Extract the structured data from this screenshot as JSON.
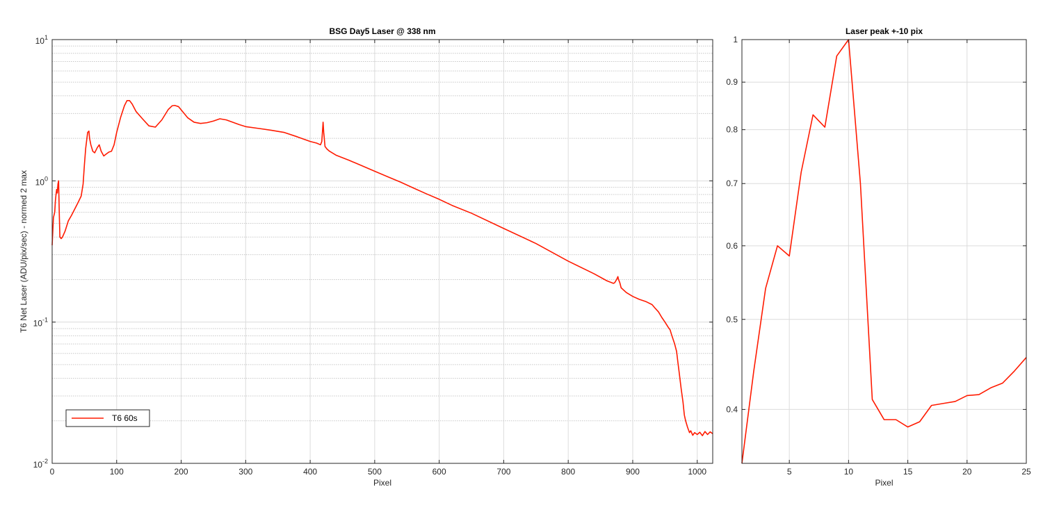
{
  "chart_data": [
    {
      "type": "line",
      "title": "BSG  Day5 Laser @ 338 nm",
      "xlabel": "Pixel",
      "ylabel": "T6 Net Laser (ADU/pix/sec) - normed 2 max",
      "xlim": [
        0,
        1024
      ],
      "ylim": [
        0.01,
        10
      ],
      "yscale": "log",
      "grid": true,
      "minor_grid": true,
      "legend_position": "bottom-left",
      "xticks": [
        0,
        100,
        200,
        300,
        400,
        500,
        600,
        700,
        800,
        900,
        1000
      ],
      "xtick_labels": [
        "0",
        "100",
        "200",
        "300",
        "400",
        "500",
        "600",
        "700",
        "800",
        "900",
        "1000"
      ],
      "yticks": [
        0.01,
        0.1,
        1,
        10
      ],
      "ytick_labels": [
        {
          "base": "10",
          "exp": "-2"
        },
        {
          "base": "10",
          "exp": "-1"
        },
        {
          "base": "10",
          "exp": "0"
        },
        {
          "base": "10",
          "exp": "1"
        }
      ],
      "series": [
        {
          "name": "T6 60s",
          "color": "#ff1a00",
          "x": [
            0,
            2,
            4,
            5,
            6,
            7,
            8,
            9,
            10,
            11,
            12,
            14,
            16,
            20,
            25,
            30,
            40,
            45,
            48,
            50,
            52,
            55,
            57,
            58,
            60,
            63,
            66,
            70,
            73,
            76,
            80,
            84,
            88,
            92,
            96,
            100,
            106,
            112,
            116,
            120,
            124,
            130,
            140,
            150,
            160,
            170,
            180,
            186,
            190,
            196,
            202,
            210,
            220,
            230,
            240,
            250,
            260,
            270,
            280,
            290,
            300,
            320,
            340,
            360,
            380,
            400,
            410,
            416,
            418,
            420,
            421,
            423,
            426,
            430,
            440,
            460,
            480,
            500,
            520,
            540,
            560,
            580,
            600,
            620,
            650,
            700,
            750,
            800,
            840,
            860,
            870,
            872,
            875,
            877,
            878,
            880,
            882,
            890,
            900,
            910,
            920,
            930,
            935,
            940,
            945,
            950,
            955,
            958,
            960,
            965,
            968,
            970,
            972,
            975,
            978,
            980,
            982,
            985,
            988,
            990,
            993,
            996,
            1000,
            1004,
            1008,
            1012,
            1016,
            1020,
            1024
          ],
          "y": [
            0.35,
            0.55,
            0.6,
            0.72,
            0.8,
            0.87,
            0.82,
            0.95,
            1.0,
            0.6,
            0.4,
            0.39,
            0.4,
            0.44,
            0.52,
            0.57,
            0.7,
            0.78,
            0.95,
            1.3,
            1.7,
            2.2,
            2.25,
            2.0,
            1.8,
            1.62,
            1.58,
            1.72,
            1.8,
            1.62,
            1.5,
            1.55,
            1.6,
            1.62,
            1.8,
            2.2,
            2.8,
            3.4,
            3.7,
            3.7,
            3.5,
            3.1,
            2.75,
            2.45,
            2.4,
            2.7,
            3.2,
            3.4,
            3.42,
            3.35,
            3.1,
            2.8,
            2.6,
            2.55,
            2.58,
            2.65,
            2.75,
            2.7,
            2.6,
            2.5,
            2.42,
            2.35,
            2.28,
            2.2,
            2.05,
            1.9,
            1.85,
            1.8,
            1.9,
            2.6,
            2.2,
            1.75,
            1.68,
            1.62,
            1.52,
            1.4,
            1.28,
            1.17,
            1.07,
            0.98,
            0.89,
            0.81,
            0.74,
            0.67,
            0.59,
            0.46,
            0.36,
            0.27,
            0.22,
            0.196,
            0.188,
            0.19,
            0.2,
            0.21,
            0.2,
            0.19,
            0.175,
            0.162,
            0.152,
            0.145,
            0.14,
            0.133,
            0.125,
            0.118,
            0.108,
            0.1,
            0.092,
            0.088,
            0.082,
            0.07,
            0.062,
            0.052,
            0.044,
            0.034,
            0.027,
            0.022,
            0.02,
            0.018,
            0.0165,
            0.017,
            0.0158,
            0.0165,
            0.016,
            0.0166,
            0.0157,
            0.0168,
            0.016,
            0.0167,
            0.0162
          ]
        }
      ]
    },
    {
      "type": "line",
      "title": "Laser peak +-10 pix",
      "xlabel": "Pixel",
      "ylabel": "",
      "xlim": [
        1,
        25
      ],
      "ylim": [
        0.35,
        1
      ],
      "yscale": "log",
      "grid": true,
      "minor_grid": true,
      "xticks": [
        5,
        10,
        15,
        20,
        25
      ],
      "xtick_labels": [
        "5",
        "10",
        "15",
        "20",
        "25"
      ],
      "yticks": [
        0.4,
        0.5,
        0.6,
        0.7,
        0.8,
        0.9,
        1
      ],
      "ytick_labels": [
        "0.4",
        "0.5",
        "0.6",
        "0.7",
        "0.8",
        "0.9",
        "1"
      ],
      "series": [
        {
          "color": "#ff1a00",
          "x": [
            1,
            2,
            3,
            4,
            5,
            6,
            7,
            8,
            9,
            10,
            11,
            12,
            13,
            14,
            15,
            16,
            17,
            18,
            19,
            20,
            21,
            22,
            23,
            24,
            25
          ],
          "y": [
            0.35,
            0.44,
            0.54,
            0.6,
            0.585,
            0.72,
            0.83,
            0.805,
            0.96,
            1.0,
            0.7,
            0.41,
            0.39,
            0.39,
            0.383,
            0.388,
            0.404,
            0.406,
            0.408,
            0.414,
            0.415,
            0.422,
            0.427,
            0.44,
            0.455
          ]
        }
      ]
    }
  ]
}
